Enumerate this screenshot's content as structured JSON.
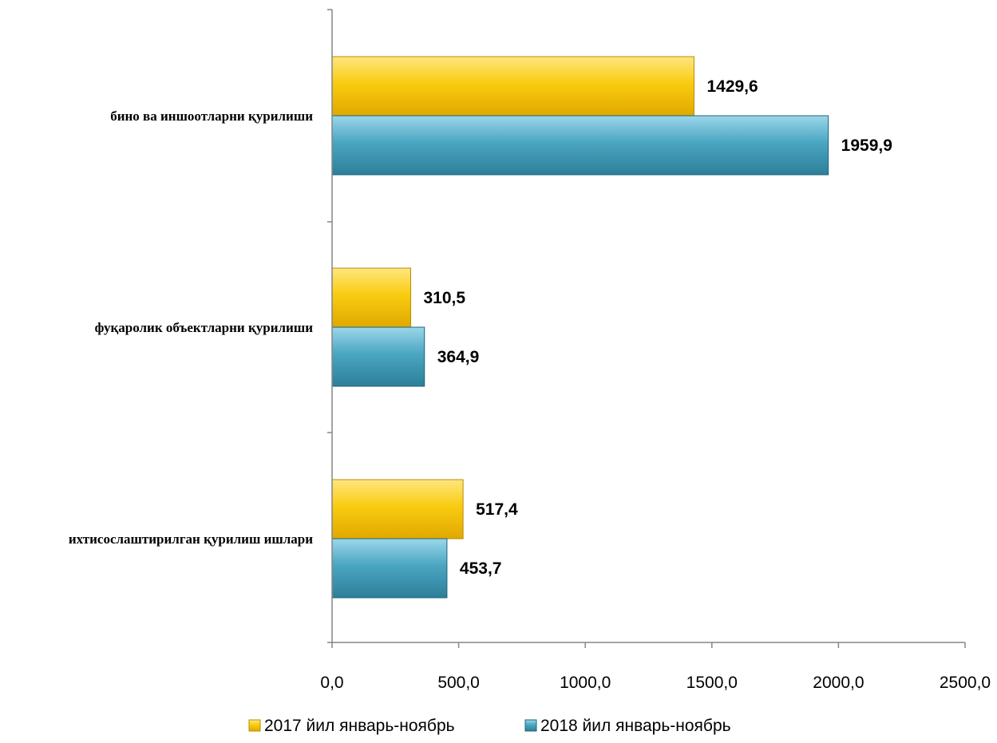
{
  "chart_data": {
    "type": "bar",
    "orientation": "horizontal",
    "categories": [
      "бино ва иншоотларни қурилиши",
      "фуқаролик объектларни қурилиши",
      "ихтисослаштирилган қурилиш ишлари"
    ],
    "series": [
      {
        "name": "2017 йил январь-ноябрь",
        "values": [
          1429.6,
          310.5,
          517.4
        ],
        "value_labels": [
          "1429,6",
          "310,5",
          "517,4"
        ],
        "color": "#F5C000"
      },
      {
        "name": "2018 йил январь-ноябрь",
        "values": [
          1959.9,
          364.9,
          453.7
        ],
        "value_labels": [
          "1959,9",
          "364,9",
          "453,7"
        ],
        "color": "#3B95B0"
      }
    ],
    "xlim": [
      0,
      2500
    ],
    "x_ticks": [
      "0,0",
      "500,0",
      "1000,0",
      "1500,0",
      "2000,0",
      "2500,0"
    ],
    "grid": false,
    "legend_position": "bottom",
    "title": "",
    "xlabel": "",
    "ylabel": ""
  }
}
